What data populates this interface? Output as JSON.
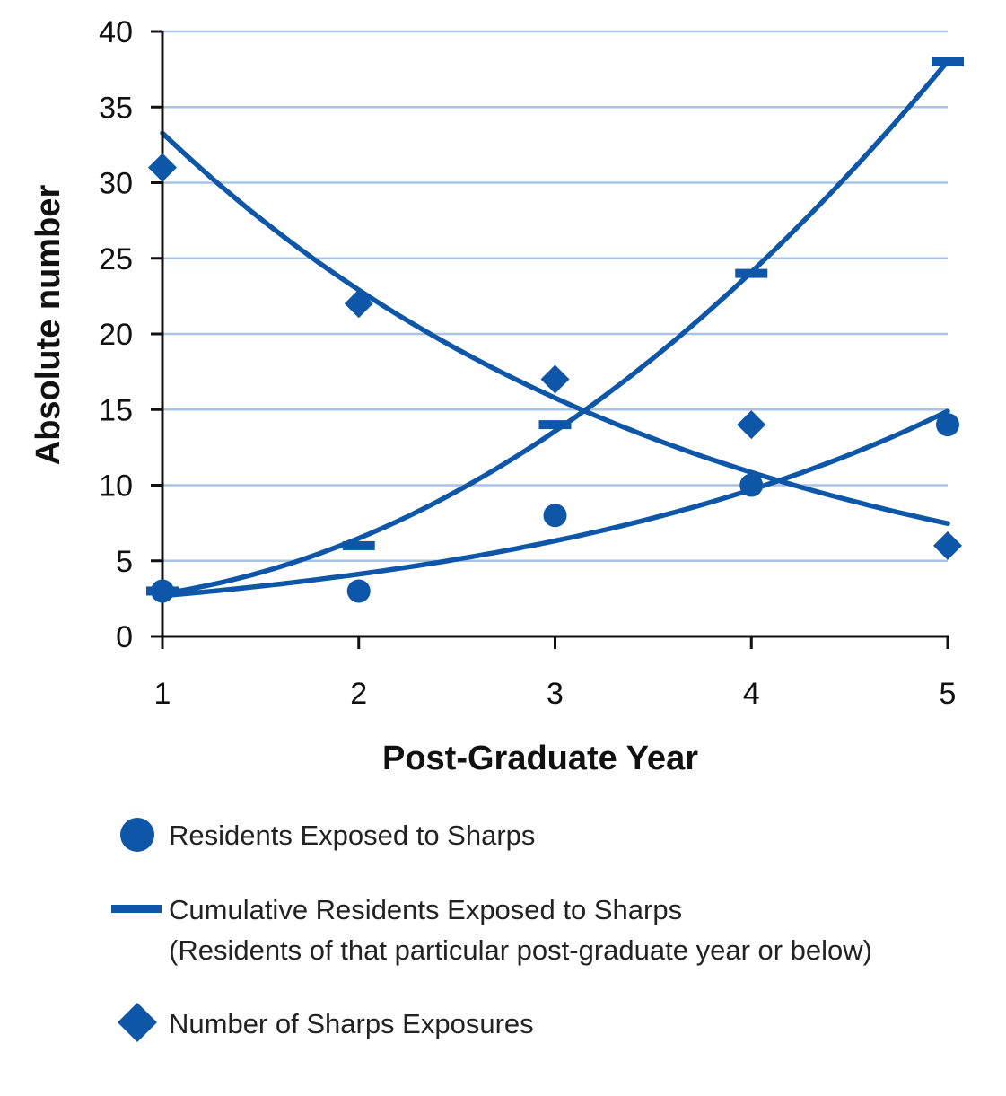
{
  "chart_data": {
    "type": "scatter",
    "xlabel": "Post-Graduate Year",
    "ylabel": "Absolute number",
    "x": [
      1,
      2,
      3,
      4,
      5
    ],
    "xlim": [
      1,
      5
    ],
    "ylim": [
      0,
      40
    ],
    "x_ticks": [
      "1",
      "2",
      "3",
      "4",
      "5"
    ],
    "y_ticks": [
      "0",
      "5",
      "10",
      "15",
      "20",
      "25",
      "30",
      "35",
      "40"
    ],
    "grid": "horizontal",
    "legend_position": "bottom",
    "series": [
      {
        "name": "Residents Exposed to Sharps",
        "marker": "circle",
        "values": [
          3,
          3,
          8,
          10,
          14
        ],
        "trendline": "exponential"
      },
      {
        "name": "Cumulative Residents Exposed to Sharps",
        "name_line2": "(Residents of that particular post-graduate year or below)",
        "marker": "dash",
        "values": [
          3,
          6,
          14,
          24,
          38
        ],
        "trendline": "polynomial"
      },
      {
        "name": "Number of Sharps Exposures",
        "marker": "diamond",
        "values": [
          31,
          22,
          17,
          14,
          6
        ],
        "trendline": "exponential"
      }
    ],
    "colors": {
      "series": "#0d56a8",
      "grid": "#a7c3e6",
      "axis": "#111111"
    }
  }
}
